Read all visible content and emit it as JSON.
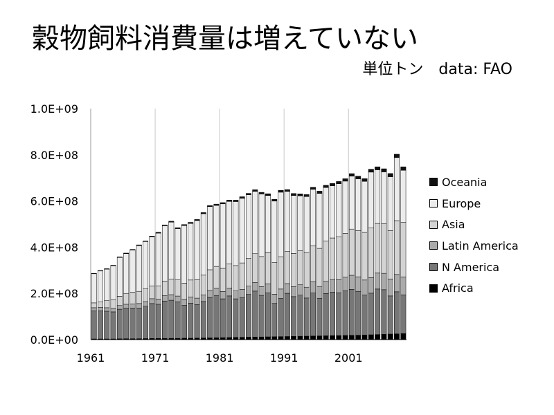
{
  "title": "穀物飼料消費量は増えていない",
  "subtitle": {
    "unit": "単位トン",
    "source": "data:  FAO"
  },
  "chart_data": {
    "type": "bar",
    "stacked": true,
    "x": [
      1961,
      1962,
      1963,
      1964,
      1965,
      1966,
      1967,
      1968,
      1969,
      1970,
      1971,
      1972,
      1973,
      1974,
      1975,
      1976,
      1977,
      1978,
      1979,
      1980,
      1981,
      1982,
      1983,
      1984,
      1985,
      1986,
      1987,
      1988,
      1989,
      1990,
      1991,
      1992,
      1993,
      1994,
      1995,
      1996,
      1997,
      1998,
      1999,
      2000,
      2001,
      2002,
      2003,
      2004,
      2005,
      2006,
      2007,
      2008,
      2009
    ],
    "x_tick_labels": [
      "1961",
      "1971",
      "1981",
      "1991",
      "2001"
    ],
    "y_tick_labels": [
      "0.0E+00",
      "2.0E+08",
      "4.0E+08",
      "6.0E+08",
      "8.0E+08",
      "1.0E+09"
    ],
    "ylim": [
      0,
      1000000000
    ],
    "grid": "vertical",
    "legend_position": "right",
    "series": [
      {
        "name": "Africa",
        "color": "#000000",
        "values": [
          3000000,
          3000000,
          3000000,
          3000000,
          3500000,
          4000000,
          4000000,
          4000000,
          4500000,
          5000000,
          5000000,
          5000000,
          5500000,
          5500000,
          6000000,
          6000000,
          6500000,
          7000000,
          7500000,
          8000000,
          8500000,
          9000000,
          9500000,
          10000000,
          10500000,
          11000000,
          11500000,
          12000000,
          12500000,
          13000000,
          13500000,
          14000000,
          14500000,
          15000000,
          15500000,
          16000000,
          16500000,
          17000000,
          17500000,
          18000000,
          18500000,
          19000000,
          20000000,
          21000000,
          22000000,
          23000000,
          24000000,
          25000000,
          26000000
        ]
      },
      {
        "name": "N America",
        "color": "#777777",
        "values": [
          122000000,
          122000000,
          120000000,
          117000000,
          128000000,
          132000000,
          133000000,
          133000000,
          140000000,
          151000000,
          148000000,
          162000000,
          165000000,
          158000000,
          142000000,
          152000000,
          145000000,
          158000000,
          175000000,
          183000000,
          168000000,
          180000000,
          167000000,
          172000000,
          185000000,
          199000000,
          180000000,
          190000000,
          144000000,
          165000000,
          187000000,
          172000000,
          178000000,
          165000000,
          186000000,
          163000000,
          183000000,
          188000000,
          185000000,
          193000000,
          199000000,
          190000000,
          173000000,
          180000000,
          197000000,
          193000000,
          165000000,
          182000000,
          168000000
        ]
      },
      {
        "name": "Latin America",
        "color": "#aaaaaa",
        "values": [
          13000000,
          14000000,
          15000000,
          15000000,
          16000000,
          17000000,
          18000000,
          19000000,
          20000000,
          21000000,
          22000000,
          23000000,
          24000000,
          25000000,
          26000000,
          27000000,
          28000000,
          29000000,
          30000000,
          31000000,
          32000000,
          33000000,
          34000000,
          35000000,
          36000000,
          37000000,
          38000000,
          39000000,
          40000000,
          41000000,
          42000000,
          43000000,
          45000000,
          47000000,
          49000000,
          51000000,
          53000000,
          55000000,
          57000000,
          59000000,
          61000000,
          63000000,
          65000000,
          67000000,
          69000000,
          71000000,
          73000000,
          75000000,
          77000000
        ]
      },
      {
        "name": "Asia",
        "color": "#d3d3d3",
        "values": [
          21000000,
          25000000,
          32000000,
          37000000,
          40000000,
          47000000,
          50000000,
          53000000,
          55000000,
          55000000,
          58000000,
          63000000,
          68000000,
          70000000,
          70000000,
          73000000,
          80000000,
          85000000,
          90000000,
          95000000,
          100000000,
          105000000,
          110000000,
          115000000,
          120000000,
          125000000,
          130000000,
          135000000,
          138000000,
          140000000,
          140000000,
          144000000,
          147000000,
          150000000,
          155000000,
          165000000,
          175000000,
          180000000,
          185000000,
          190000000,
          200000000,
          200000000,
          206000000,
          215000000,
          215000000,
          215000000,
          210000000,
          233000000,
          236000000
        ]
      },
      {
        "name": "Europe",
        "color": "#ececec",
        "values": [
          126000000,
          133000000,
          135000000,
          148000000,
          168000000,
          172000000,
          183000000,
          198000000,
          205000000,
          213000000,
          228000000,
          240000000,
          246000000,
          222000000,
          250000000,
          245000000,
          256000000,
          266000000,
          273000000,
          264000000,
          279000000,
          271000000,
          277000000,
          280000000,
          275000000,
          270000000,
          271000000,
          248000000,
          265000000,
          279000000,
          259000000,
          251000000,
          238000000,
          242000000,
          245000000,
          238000000,
          231000000,
          226000000,
          230000000,
          226000000,
          229000000,
          224000000,
          221000000,
          242000000,
          232000000,
          224000000,
          233000000,
          273000000,
          226000000
        ]
      },
      {
        "name": "Oceania",
        "color": "#111111",
        "values": [
          2000000,
          2000000,
          2000000,
          2000000,
          2500000,
          2500000,
          2500000,
          3000000,
          3000000,
          3000000,
          3500000,
          3500000,
          4000000,
          4000000,
          4000000,
          4500000,
          4500000,
          5000000,
          5000000,
          5500000,
          5500000,
          6000000,
          6000000,
          6500000,
          6500000,
          7000000,
          7000000,
          7500000,
          7500000,
          8000000,
          8000000,
          8500000,
          8500000,
          9000000,
          9000000,
          9500000,
          9500000,
          10000000,
          10000000,
          10500000,
          11000000,
          11500000,
          12000000,
          12500000,
          13000000,
          13500000,
          14000000,
          14500000,
          15000000
        ]
      }
    ]
  }
}
